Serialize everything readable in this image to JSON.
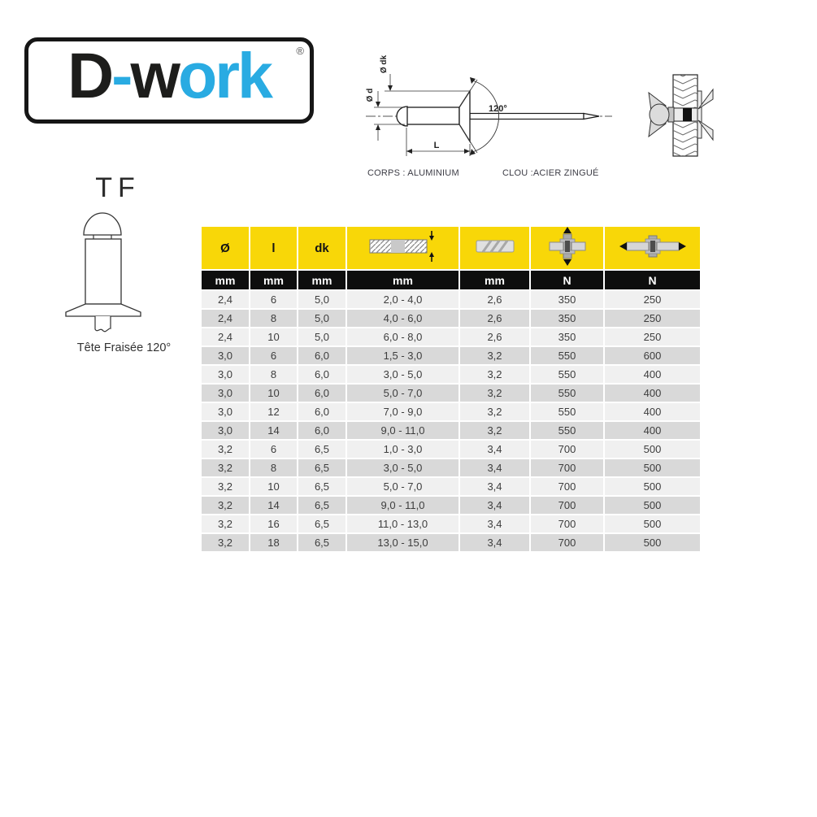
{
  "logo": {
    "part1": "D",
    "hyphen": "-",
    "part2": "w",
    "part3": "ork",
    "registered": "®",
    "blue": "#29abe2",
    "dark": "#1d1d1b"
  },
  "diagram": {
    "label_d": "Ø d",
    "label_dk": "Ø dk",
    "label_angle": "120°",
    "label_length": "L",
    "body_material": "CORPS : ALUMINIUM",
    "nail_material": "CLOU :ACIER ZINGUÉ"
  },
  "product": {
    "type_code": "TF",
    "type_caption": "Tête Fraisée 120°"
  },
  "table": {
    "columns": [
      {
        "label": "Ø",
        "unit": "mm"
      },
      {
        "label": "l",
        "unit": "mm"
      },
      {
        "label": "dk",
        "unit": "mm"
      },
      {
        "label": "",
        "icon": "grip-range-icon",
        "unit": "mm"
      },
      {
        "label": "",
        "icon": "drill-hole-icon",
        "unit": "mm"
      },
      {
        "label": "",
        "icon": "tensile-strength-icon",
        "unit": "N"
      },
      {
        "label": "",
        "icon": "shear-strength-icon",
        "unit": "N"
      }
    ],
    "rows": [
      [
        "2,4",
        "6",
        "5,0",
        "2,0 - 4,0",
        "2,6",
        "350",
        "250"
      ],
      [
        "2,4",
        "8",
        "5,0",
        "4,0 - 6,0",
        "2,6",
        "350",
        "250"
      ],
      [
        "2,4",
        "10",
        "5,0",
        "6,0 - 8,0",
        "2,6",
        "350",
        "250"
      ],
      [
        "3,0",
        "6",
        "6,0",
        "1,5 - 3,0",
        "3,2",
        "550",
        "600"
      ],
      [
        "3,0",
        "8",
        "6,0",
        "3,0 - 5,0",
        "3,2",
        "550",
        "400"
      ],
      [
        "3,0",
        "10",
        "6,0",
        "5,0 - 7,0",
        "3,2",
        "550",
        "400"
      ],
      [
        "3,0",
        "12",
        "6,0",
        "7,0 - 9,0",
        "3,2",
        "550",
        "400"
      ],
      [
        "3,0",
        "14",
        "6,0",
        "9,0 - 11,0",
        "3,2",
        "550",
        "400"
      ],
      [
        "3,2",
        "6",
        "6,5",
        "1,0 - 3,0",
        "3,4",
        "700",
        "500"
      ],
      [
        "3,2",
        "8",
        "6,5",
        "3,0 - 5,0",
        "3,4",
        "700",
        "500"
      ],
      [
        "3,2",
        "10",
        "6,5",
        "5,0 - 7,0",
        "3,4",
        "700",
        "500"
      ],
      [
        "3,2",
        "14",
        "6,5",
        "9,0 - 11,0",
        "3,4",
        "700",
        "500"
      ],
      [
        "3,2",
        "16",
        "6,5",
        "11,0 - 13,0",
        "3,4",
        "700",
        "500"
      ],
      [
        "3,2",
        "18",
        "6,5",
        "13,0 - 15,0",
        "3,4",
        "700",
        "500"
      ]
    ],
    "colors": {
      "header_yellow": "#f8d708",
      "header_black": "#0e0e0e",
      "row_light": "#f0f0f0",
      "row_dark": "#d9d9d9"
    }
  }
}
